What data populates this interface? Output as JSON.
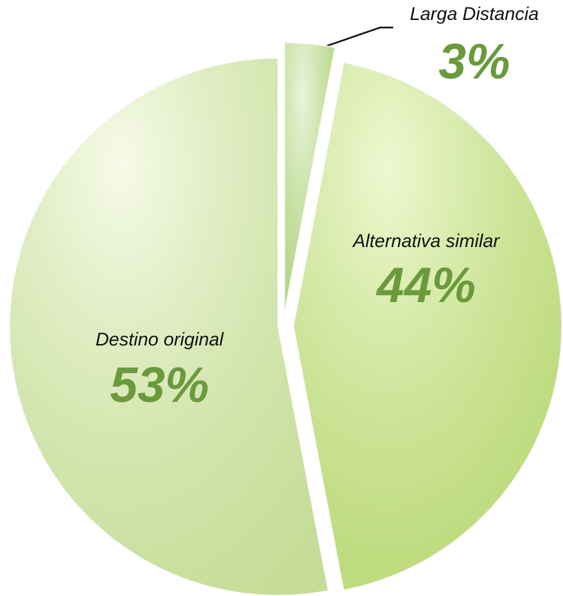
{
  "chart_data": {
    "type": "pie",
    "categories": [
      "Larga Distancia",
      "Alternativa similar",
      "Destino original"
    ],
    "values": [
      3,
      44,
      53
    ],
    "value_labels": [
      "3%",
      "44%",
      "53%"
    ],
    "colors": [
      "#c9e6a3",
      "#d6ee8e",
      "#eaf5c6"
    ]
  }
}
